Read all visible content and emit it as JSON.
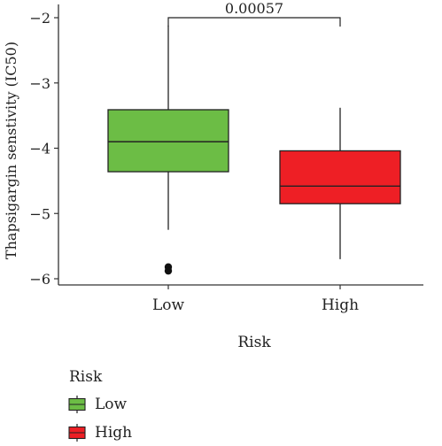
{
  "chart_data": {
    "type": "box",
    "ylabel": "Thapsigargin senstivity (IC50)",
    "xlabel": "Risk",
    "categories": [
      "Low",
      "High"
    ],
    "ylim": [
      -6.1,
      -1.85
    ],
    "yticks": [
      -6,
      -5,
      -4,
      -3,
      -2
    ],
    "ytick_labels": [
      "−6",
      "−5",
      "−4",
      "−3",
      "−2"
    ],
    "series": [
      {
        "name": "Low",
        "color": "#6cbd45",
        "whisker_low": -5.25,
        "q1": -4.36,
        "median": -3.9,
        "q3": -3.41,
        "whisker_high": -2.12,
        "outliers": [
          -5.82,
          -5.88
        ]
      },
      {
        "name": "High",
        "color": "#ee1f25",
        "whisker_low": -5.7,
        "q1": -4.85,
        "median": -4.58,
        "q3": -4.04,
        "whisker_high": -3.38,
        "outliers": []
      }
    ],
    "comparison": {
      "label": "0.00057",
      "between": [
        "Low",
        "High"
      ]
    },
    "legend": {
      "title": "Risk",
      "position": "bottom-left",
      "entries": [
        "Low",
        "High"
      ]
    }
  }
}
